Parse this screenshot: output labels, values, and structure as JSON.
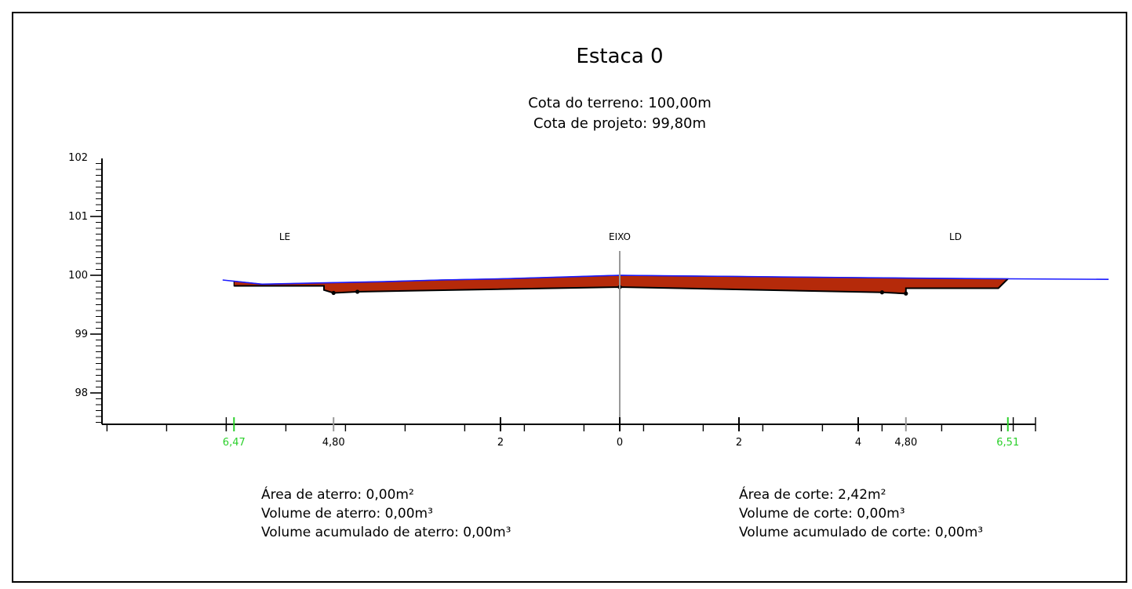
{
  "title": "Estaca 0",
  "cota_terreno": "Cota do terreno: 100,00m",
  "cota_projeto": "Cota de projeto: 99,80m",
  "labels": {
    "left": "LE",
    "axis": "EIXO",
    "right": "LD"
  },
  "y_ticks": [
    "102",
    "101",
    "100",
    "99",
    "98"
  ],
  "x_ticks": [
    {
      "text": "6,47",
      "x": -6.47,
      "highlight": true
    },
    {
      "text": "4,80",
      "x": -4.8,
      "highlight": false
    },
    {
      "text": "2",
      "x": -2,
      "highlight": false
    },
    {
      "text": "0",
      "x": 0,
      "highlight": false
    },
    {
      "text": "2",
      "x": 2,
      "highlight": false
    },
    {
      "text": "4",
      "x": 4,
      "highlight": false
    },
    {
      "text": "4,80",
      "x": 4.8,
      "highlight": false
    },
    {
      "text": "6,51",
      "x": 6.51,
      "highlight": true
    }
  ],
  "left_info": [
    "Área de aterro: 0,00m²",
    "Volume de aterro: 0,00m³",
    "Volume acumulado de aterro: 0,00m³"
  ],
  "right_info": [
    "Área de corte: 2,42m²",
    "Volume de corte: 0,00m³",
    "Volume acumulado de corte: 0,00m³"
  ],
  "colors": {
    "terrain": "#1a1aff",
    "cut": "#b52a0a",
    "axis": "#999999",
    "highlight": "#2bd02b"
  },
  "chart_data": {
    "type": "area",
    "ylim": [
      97.5,
      102
    ],
    "terrain": {
      "x": [
        -6.66,
        -6.0,
        -5.0,
        -4.0,
        -3.0,
        -2.0,
        -1.0,
        0.0,
        1.0,
        2.0,
        3.0,
        4.0,
        5.0,
        6.51,
        8.2
      ],
      "y": [
        99.92,
        99.85,
        99.87,
        99.89,
        99.92,
        99.94,
        99.97,
        100.0,
        99.99,
        99.98,
        99.97,
        99.96,
        99.95,
        99.94,
        99.93
      ]
    },
    "design": {
      "x": [
        -6.47,
        -4.96,
        -4.96,
        -4.8,
        -4.4,
        0.0,
        4.4,
        4.8,
        4.8,
        6.35,
        6.51
      ],
      "y": [
        99.82,
        99.82,
        99.75,
        99.7,
        99.72,
        99.8,
        99.71,
        99.69,
        99.78,
        99.78,
        99.94
      ]
    }
  }
}
